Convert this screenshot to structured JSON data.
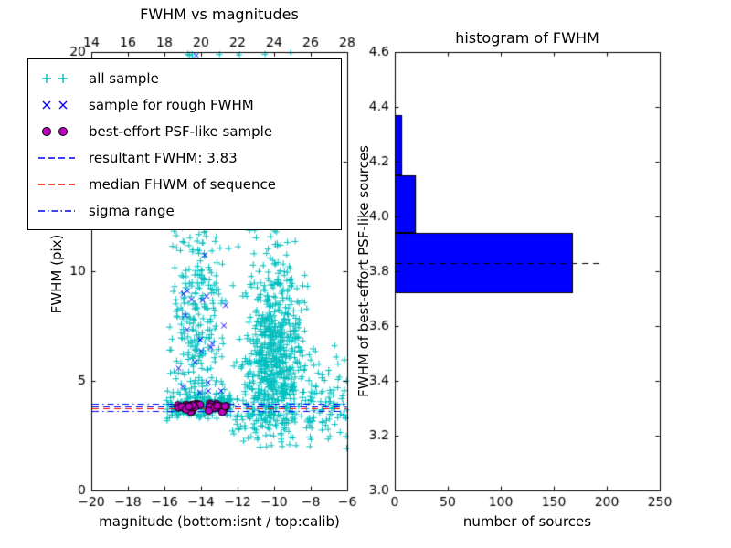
{
  "chart_data": [
    {
      "type": "scatter",
      "title": "FWHM vs magnitudes",
      "xlabel": "magnitude (bottom:isnt / top:calib)",
      "ylabel": "FWHM (pix)",
      "xlim": [
        -20,
        -6
      ],
      "ylim": [
        0,
        20
      ],
      "xticks_bottom": [
        -20,
        -18,
        -16,
        -14,
        -12,
        -10,
        -8,
        -6
      ],
      "xticks_top": [
        14,
        16,
        18,
        20,
        22,
        24,
        26,
        28
      ],
      "xticks_top_lim": [
        14,
        28
      ],
      "yticks": [
        0,
        5,
        10,
        15,
        20
      ],
      "series": [
        {
          "name": "all sample",
          "marker": "plus",
          "color": "#00bfbf",
          "clusters": [
            {
              "n": 240,
              "x": [
                "uniform",
                -15.9,
                -12.3
              ],
              "y": [
                "normal",
                3.9,
                0.28,
                3.1,
                4.8
              ]
            },
            {
              "n": 210,
              "x": [
                "normal",
                -14.3,
                0.8,
                -15.9,
                -12.3
              ],
              "y": [
                "uniform",
                4.2,
                20
              ]
            },
            {
              "n": 150,
              "x": [
                "normal",
                -14.2,
                0.7,
                -15.9,
                -12.3
              ],
              "y": [
                "normal",
                7.5,
                2.2,
                4.2,
                13
              ]
            },
            {
              "n": 620,
              "x": [
                "normal",
                -9.9,
                0.8,
                -12.2,
                -7.4
              ],
              "y": [
                "normal",
                6.2,
                1.9,
                2.8,
                12.5
              ]
            },
            {
              "n": 110,
              "x": [
                "normal",
                -10.3,
                1.0,
                -12.4,
                -8.0
              ],
              "y": [
                "uniform",
                9,
                20
              ]
            },
            {
              "n": 90,
              "x": [
                "uniform",
                -8.3,
                -6.0
              ],
              "y": [
                "normal",
                3.8,
                1.1,
                1.6,
                7.0
              ]
            },
            {
              "n": 70,
              "x": [
                "uniform",
                -12.3,
                -10.4
              ],
              "y": [
                "normal",
                4.3,
                1.2,
                2.4,
                8.0
              ]
            },
            {
              "n": 35,
              "x": [
                "uniform",
                -11.8,
                -8.8
              ],
              "y": [
                "uniform",
                2.0,
                3.4
              ]
            }
          ]
        },
        {
          "name": "sample for rough FWHM",
          "marker": "x",
          "color": "#0000ff",
          "clusters": [
            {
              "n": 20,
              "x": [
                "normal",
                -14.0,
                0.8,
                -15.5,
                -12.5
              ],
              "y": [
                "uniform",
                4.3,
                9.5
              ]
            },
            {
              "n": 12,
              "x": [
                "normal",
                -13.8,
                0.7,
                -15.2,
                -12.6
              ],
              "y": [
                "uniform",
                9.5,
                20
              ]
            }
          ]
        },
        {
          "name": "best-effort PSF-like sample",
          "marker": "circle",
          "color": "#bf00bf",
          "edge": "#000000",
          "clusters": [
            {
              "n": 42,
              "x": [
                "uniform",
                -15.4,
                -12.6
              ],
              "y": [
                "normal",
                3.82,
                0.1,
                3.55,
                4.1
              ]
            }
          ]
        }
      ],
      "hlines": [
        {
          "name": "resultant FWHM",
          "y": 3.83,
          "color": "#0000ff",
          "style": "dashed"
        },
        {
          "name": "median FHWM of sequence",
          "y": 3.76,
          "color": "#ff0000",
          "style": "dashed"
        },
        {
          "name": "sigma range upper",
          "y": 3.96,
          "color": "#0000ff",
          "style": "dashdot"
        },
        {
          "name": "sigma range lower",
          "y": 3.62,
          "color": "#0000ff",
          "style": "dashdot"
        }
      ]
    },
    {
      "type": "bar",
      "orientation": "horizontal",
      "title": "histogram of FWHM",
      "xlabel": "number of sources",
      "ylabel": "FWHM of best-effort PSF-like sources",
      "xlim": [
        0,
        250
      ],
      "ylim": [
        3.0,
        4.6
      ],
      "xticks": [
        0,
        50,
        100,
        150,
        200,
        250
      ],
      "yticks": [
        3.0,
        3.2,
        3.4,
        3.6,
        3.8,
        4.0,
        4.2,
        4.4,
        4.6
      ],
      "ytick_decimals": 1,
      "bar_color": "#0000ff",
      "bar_edge": "#000000",
      "bins": {
        "edges": [
          3.72,
          3.94,
          4.15,
          4.37
        ],
        "counts": [
          168,
          20,
          7
        ]
      },
      "marker_line": {
        "y": 3.83,
        "x_extent": 195,
        "color": "#000000",
        "style": "dashed"
      }
    }
  ],
  "legend": {
    "items": [
      {
        "label": "all sample",
        "glyph": "plus",
        "color": "#00bfbf"
      },
      {
        "label": "sample for rough FWHM",
        "glyph": "x",
        "color": "#0000ff"
      },
      {
        "label": "best-effort PSF-like sample",
        "glyph": "circle",
        "color": "#bf00bf"
      },
      {
        "label": "resultant FWHM: 3.83",
        "glyph": "dashed-line",
        "color": "#0000ff"
      },
      {
        "label": "median FHWM of sequence",
        "glyph": "dashed-line",
        "color": "#ff0000"
      },
      {
        "label": "sigma range",
        "glyph": "dashdot-line",
        "color": "#0000ff"
      }
    ]
  }
}
